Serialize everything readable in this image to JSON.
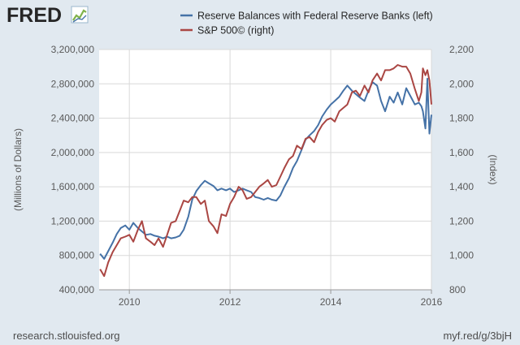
{
  "header": {
    "logo_text": "FRED"
  },
  "footer": {
    "source_left": "research.stlouisfed.org",
    "source_right": "myf.red/g/3bjH"
  },
  "colors": {
    "background": "#e1e9f0",
    "plot_bg": "#ffffff",
    "grid": "#d9d9d9",
    "reserve": "#4572a7",
    "sp500": "#aa4643",
    "logo_icon_green": "#7fb24a"
  },
  "icons": {
    "logo": "line-chart-icon"
  },
  "chart_data": {
    "type": "line",
    "title": "",
    "xlabel": "",
    "ylabel": "(Millions of Dollars)",
    "y2label": "(Index)",
    "xlim": [
      2009.4,
      2016.0
    ],
    "ylim": [
      400000,
      3200000
    ],
    "y2lim": [
      800,
      2200
    ],
    "x_ticks": [
      2010,
      2012,
      2014,
      2016
    ],
    "x_tick_labels": [
      "2010",
      "2012",
      "2014",
      "2016"
    ],
    "y_ticks": [
      400000,
      800000,
      1200000,
      1600000,
      2000000,
      2400000,
      2800000,
      3200000
    ],
    "y_tick_labels": [
      "400,000",
      "800,000",
      "1,200,000",
      "1,600,000",
      "2,000,000",
      "2,400,000",
      "2,800,000",
      "3,200,000"
    ],
    "y2_ticks": [
      800,
      1000,
      1200,
      1400,
      1600,
      1800,
      2000,
      2200
    ],
    "y2_tick_labels": [
      "800",
      "1,000",
      "1,200",
      "1,400",
      "1,600",
      "1,800",
      "2,000",
      "2,200"
    ],
    "grid": true,
    "legend_position": "top",
    "series": [
      {
        "name": "Reserve Balances with Federal Reserve Banks (left)",
        "axis": "left",
        "color": "#4572a7",
        "x": [
          2009.42,
          2009.5,
          2009.58,
          2009.67,
          2009.75,
          2009.83,
          2009.92,
          2010.0,
          2010.08,
          2010.17,
          2010.25,
          2010.33,
          2010.42,
          2010.5,
          2010.58,
          2010.67,
          2010.75,
          2010.83,
          2010.92,
          2011.0,
          2011.08,
          2011.17,
          2011.25,
          2011.33,
          2011.42,
          2011.5,
          2011.58,
          2011.67,
          2011.75,
          2011.83,
          2011.92,
          2012.0,
          2012.08,
          2012.17,
          2012.25,
          2012.33,
          2012.42,
          2012.5,
          2012.58,
          2012.67,
          2012.75,
          2012.83,
          2012.92,
          2013.0,
          2013.08,
          2013.17,
          2013.25,
          2013.33,
          2013.42,
          2013.5,
          2013.58,
          2013.67,
          2013.75,
          2013.83,
          2013.92,
          2014.0,
          2014.08,
          2014.17,
          2014.25,
          2014.33,
          2014.42,
          2014.5,
          2014.58,
          2014.67,
          2014.75,
          2014.83,
          2014.92,
          2015.0,
          2015.08,
          2015.17,
          2015.25,
          2015.33,
          2015.42,
          2015.5,
          2015.58,
          2015.67,
          2015.75,
          2015.8,
          2015.83,
          2015.88,
          2015.92,
          2015.96,
          2016.0
        ],
        "values": [
          820000,
          760000,
          850000,
          950000,
          1050000,
          1120000,
          1150000,
          1100000,
          1180000,
          1120000,
          1080000,
          1040000,
          1050000,
          1030000,
          1020000,
          1000000,
          1020000,
          1000000,
          1010000,
          1030000,
          1100000,
          1250000,
          1450000,
          1550000,
          1620000,
          1670000,
          1640000,
          1610000,
          1560000,
          1580000,
          1560000,
          1580000,
          1540000,
          1560000,
          1580000,
          1560000,
          1540000,
          1480000,
          1470000,
          1450000,
          1470000,
          1450000,
          1440000,
          1500000,
          1600000,
          1700000,
          1820000,
          1900000,
          2030000,
          2150000,
          2200000,
          2250000,
          2320000,
          2420000,
          2500000,
          2560000,
          2600000,
          2650000,
          2720000,
          2780000,
          2720000,
          2680000,
          2640000,
          2600000,
          2720000,
          2820000,
          2780000,
          2600000,
          2480000,
          2650000,
          2580000,
          2700000,
          2560000,
          2750000,
          2660000,
          2560000,
          2580000,
          2540000,
          2480000,
          2280000,
          2860000,
          2220000,
          2440000
        ]
      },
      {
        "name": "S&P 500© (right)",
        "axis": "right",
        "color": "#aa4643",
        "x": [
          2009.42,
          2009.5,
          2009.58,
          2009.67,
          2009.75,
          2009.83,
          2009.92,
          2010.0,
          2010.08,
          2010.17,
          2010.25,
          2010.33,
          2010.42,
          2010.5,
          2010.58,
          2010.67,
          2010.75,
          2010.83,
          2010.92,
          2011.0,
          2011.08,
          2011.17,
          2011.25,
          2011.33,
          2011.42,
          2011.5,
          2011.58,
          2011.67,
          2011.75,
          2011.83,
          2011.92,
          2012.0,
          2012.08,
          2012.17,
          2012.25,
          2012.33,
          2012.42,
          2012.5,
          2012.58,
          2012.67,
          2012.75,
          2012.83,
          2012.92,
          2013.0,
          2013.08,
          2013.17,
          2013.25,
          2013.33,
          2013.42,
          2013.5,
          2013.58,
          2013.67,
          2013.75,
          2013.83,
          2013.92,
          2014.0,
          2014.08,
          2014.17,
          2014.25,
          2014.33,
          2014.42,
          2014.5,
          2014.58,
          2014.67,
          2014.75,
          2014.83,
          2014.92,
          2015.0,
          2015.08,
          2015.17,
          2015.25,
          2015.33,
          2015.42,
          2015.5,
          2015.58,
          2015.67,
          2015.75,
          2015.8,
          2015.83,
          2015.88,
          2015.92,
          2015.96,
          2016.0
        ],
        "values": [
          920,
          880,
          960,
          1020,
          1060,
          1100,
          1110,
          1120,
          1080,
          1150,
          1200,
          1100,
          1080,
          1060,
          1100,
          1050,
          1120,
          1190,
          1200,
          1260,
          1320,
          1310,
          1340,
          1340,
          1300,
          1320,
          1200,
          1170,
          1130,
          1240,
          1230,
          1300,
          1340,
          1400,
          1380,
          1330,
          1340,
          1370,
          1400,
          1420,
          1440,
          1400,
          1410,
          1460,
          1510,
          1560,
          1580,
          1640,
          1620,
          1680,
          1690,
          1660,
          1720,
          1760,
          1790,
          1800,
          1780,
          1840,
          1860,
          1880,
          1950,
          1960,
          1930,
          1990,
          1950,
          2020,
          2060,
          2020,
          2080,
          2080,
          2090,
          2110,
          2100,
          2100,
          2060,
          1970,
          1900,
          1950,
          2090,
          2050,
          2080,
          2020,
          1880
        ]
      }
    ]
  }
}
